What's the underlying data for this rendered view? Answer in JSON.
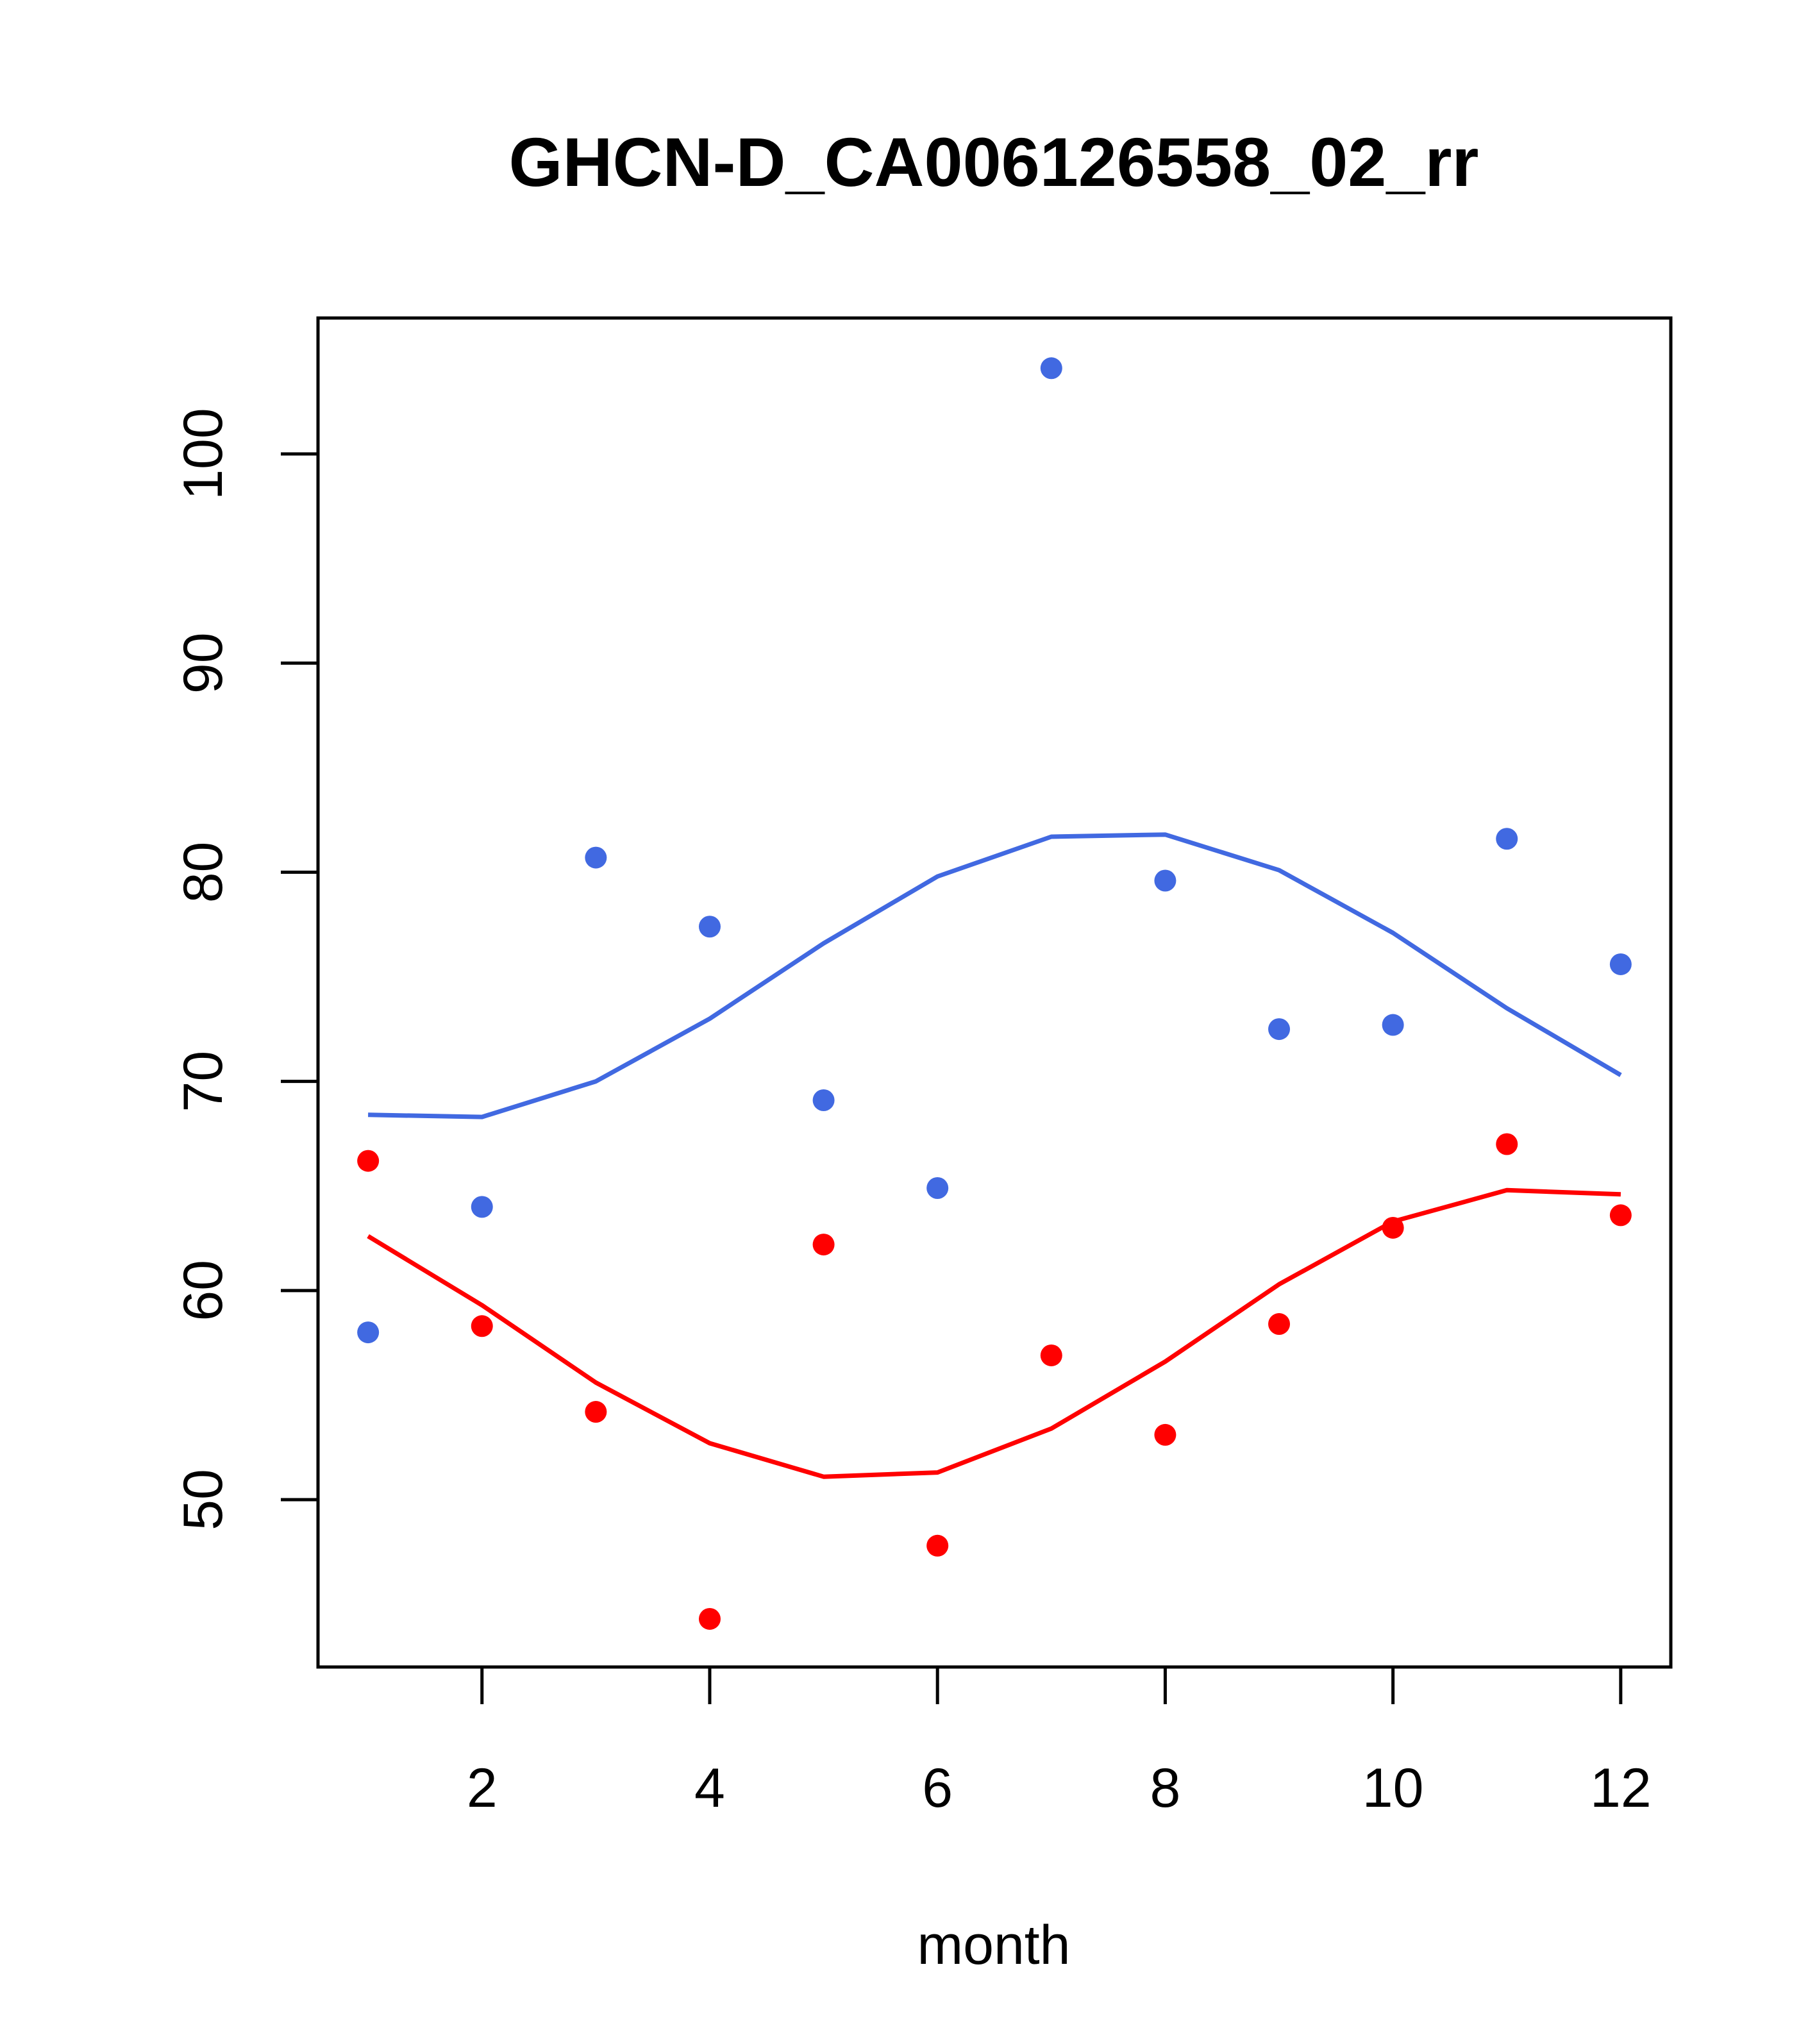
{
  "chart_data": {
    "type": "scatter",
    "title": "GHCN-D_CA006126558_02_rr",
    "xlabel": "month",
    "ylabel": "",
    "xlim": [
      0.56,
      12.44
    ],
    "ylim": [
      42,
      106.5
    ],
    "xticks": [
      2,
      4,
      6,
      8,
      10,
      12
    ],
    "yticks": [
      50,
      60,
      70,
      80,
      90,
      100
    ],
    "grid": false,
    "legend": "none",
    "series": [
      {
        "color": "#4169E1",
        "points": {
          "x": [
            1,
            2,
            3,
            4,
            5,
            6,
            7,
            8,
            9,
            10,
            11,
            12
          ],
          "y": [
            58.0,
            64.0,
            80.7,
            77.4,
            69.1,
            64.9,
            104.1,
            79.6,
            72.5,
            72.7,
            81.6,
            75.6
          ]
        },
        "line": {
          "x": [
            1,
            2,
            3,
            4,
            5,
            6,
            7,
            8,
            9,
            10,
            11,
            12
          ],
          "y": [
            68.4,
            68.3,
            70.0,
            73.0,
            76.6,
            79.8,
            81.7,
            81.8,
            80.1,
            77.1,
            73.5,
            70.3
          ]
        }
      },
      {
        "color": "#FF0000",
        "points": {
          "x": [
            1,
            2,
            3,
            4,
            5,
            6,
            7,
            8,
            9,
            10,
            11,
            12
          ],
          "y": [
            66.2,
            58.3,
            54.2,
            44.3,
            62.2,
            47.8,
            56.9,
            53.1,
            58.4,
            63.0,
            67.0,
            63.6
          ]
        },
        "line": {
          "x": [
            1,
            2,
            3,
            4,
            5,
            6,
            7,
            8,
            9,
            10,
            11,
            12
          ],
          "y": [
            62.6,
            59.3,
            55.6,
            52.7,
            51.1,
            51.3,
            53.4,
            56.6,
            60.3,
            63.3,
            64.8,
            64.6
          ]
        }
      }
    ]
  }
}
